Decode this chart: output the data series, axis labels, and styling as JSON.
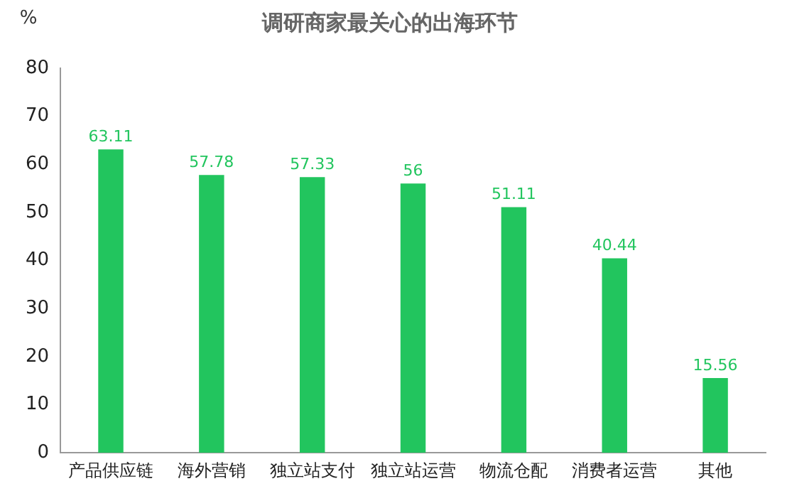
{
  "chart_data": {
    "type": "bar",
    "title": "调研商家最关心的出海环节",
    "ylabel": "%",
    "categories": [
      "产品供应链",
      "海外营销",
      "独立站支付",
      "独立站运营",
      "物流仓配",
      "消费者运营",
      "其他"
    ],
    "values": [
      63.11,
      57.78,
      57.33,
      56,
      51.11,
      40.44,
      15.56
    ],
    "color": "#22c55e",
    "ylim": [
      0,
      80
    ],
    "yticks": [
      0,
      10,
      20,
      30,
      40,
      50,
      60,
      70,
      80
    ],
    "grid": false,
    "legend": false,
    "data_labels": true
  }
}
